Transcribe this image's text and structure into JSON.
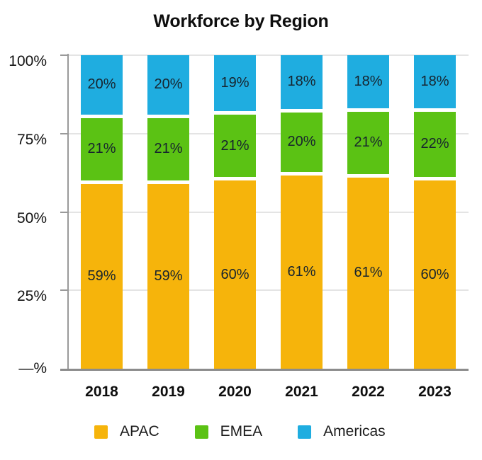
{
  "chart_data": {
    "type": "bar",
    "stacked": true,
    "percent": true,
    "title": "Workforce by Region",
    "categories": [
      "2018",
      "2019",
      "2020",
      "2021",
      "2022",
      "2023"
    ],
    "series": [
      {
        "name": "APAC",
        "color": "#F6B40B",
        "values": [
          59,
          59,
          60,
          61,
          61,
          60
        ],
        "labels": [
          "59%",
          "59%",
          "60%",
          "61%",
          "61%",
          "60%"
        ]
      },
      {
        "name": "EMEA",
        "color": "#5BC214",
        "values": [
          21,
          21,
          21,
          20,
          21,
          22
        ],
        "labels": [
          "21%",
          "21%",
          "21%",
          "20%",
          "21%",
          "22%"
        ]
      },
      {
        "name": "Americas",
        "color": "#1FADE0",
        "values": [
          20,
          20,
          19,
          18,
          18,
          18
        ],
        "labels": [
          "20%",
          "20%",
          "19%",
          "18%",
          "18%",
          "18%"
        ]
      }
    ],
    "stack_order_bottom_to_top": [
      "APAC",
      "EMEA",
      "Americas"
    ],
    "y_axis": {
      "ylim": [
        0,
        100
      ],
      "grid": true,
      "ticks": [
        {
          "value": 100,
          "label": "100%"
        },
        {
          "value": 75,
          "label": "75%"
        },
        {
          "value": 50,
          "label": "50%"
        },
        {
          "value": 25,
          "label": "25%"
        },
        {
          "value": 0,
          "label": "—%"
        }
      ]
    },
    "legend": {
      "position": "bottom",
      "entries": [
        {
          "label": "APAC",
          "color": "#F6B40B"
        },
        {
          "label": "EMEA",
          "color": "#5BC214"
        },
        {
          "label": "Americas",
          "color": "#1FADE0"
        }
      ]
    }
  }
}
